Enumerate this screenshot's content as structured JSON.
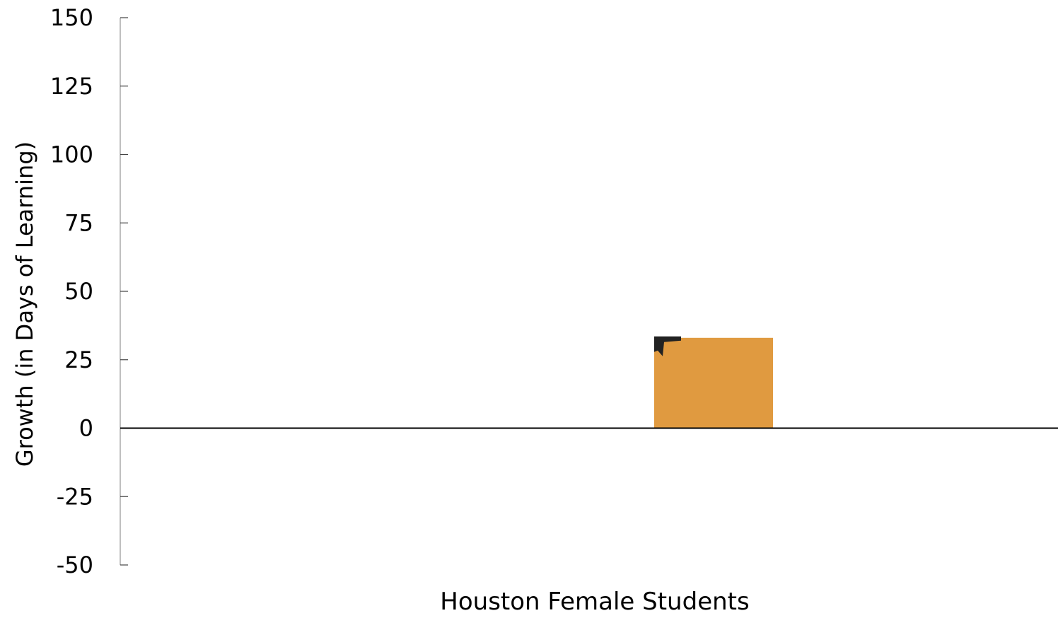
{
  "chart_data": {
    "type": "bar",
    "categories": [
      "Houston Female Students"
    ],
    "values": [
      33
    ],
    "title": "",
    "xlabel": "Houston Female Students",
    "ylabel": "Growth (in Days of Learning)",
    "ylim": [
      -50,
      150
    ],
    "yticks": [
      -50,
      -25,
      0,
      25,
      50,
      75,
      100,
      125,
      150
    ],
    "grid": false,
    "colors": {
      "bar": "#E09A40",
      "axis": "#000000",
      "marker": "#222222"
    }
  }
}
